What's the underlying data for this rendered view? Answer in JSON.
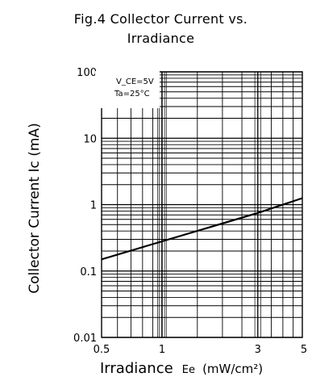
{
  "chart_data": {
    "type": "line",
    "title": "Fig.4 Collector Current vs.",
    "subtitle": "Irradiance",
    "xlabel": "Irradiance",
    "xlabel_symbol": "Ee",
    "xlabel_unit": "(mW/cm²)",
    "ylabel": "Collector Current Ic (mA)",
    "x_scale": "log",
    "y_scale": "log",
    "xlim": [
      0.5,
      5
    ],
    "ylim": [
      0.01,
      100
    ],
    "x_ticks": [
      "0.5",
      "1",
      "3",
      "5"
    ],
    "y_ticks": [
      "0.01",
      "0.1",
      "1",
      "10",
      "100"
    ],
    "grid": true,
    "conditions": [
      "V_CE=5V",
      "Ta=25°C"
    ],
    "series": [
      {
        "x": [
          0.5,
          1,
          3,
          5
        ],
        "y": [
          0.15,
          0.28,
          0.75,
          1.25
        ]
      }
    ]
  }
}
